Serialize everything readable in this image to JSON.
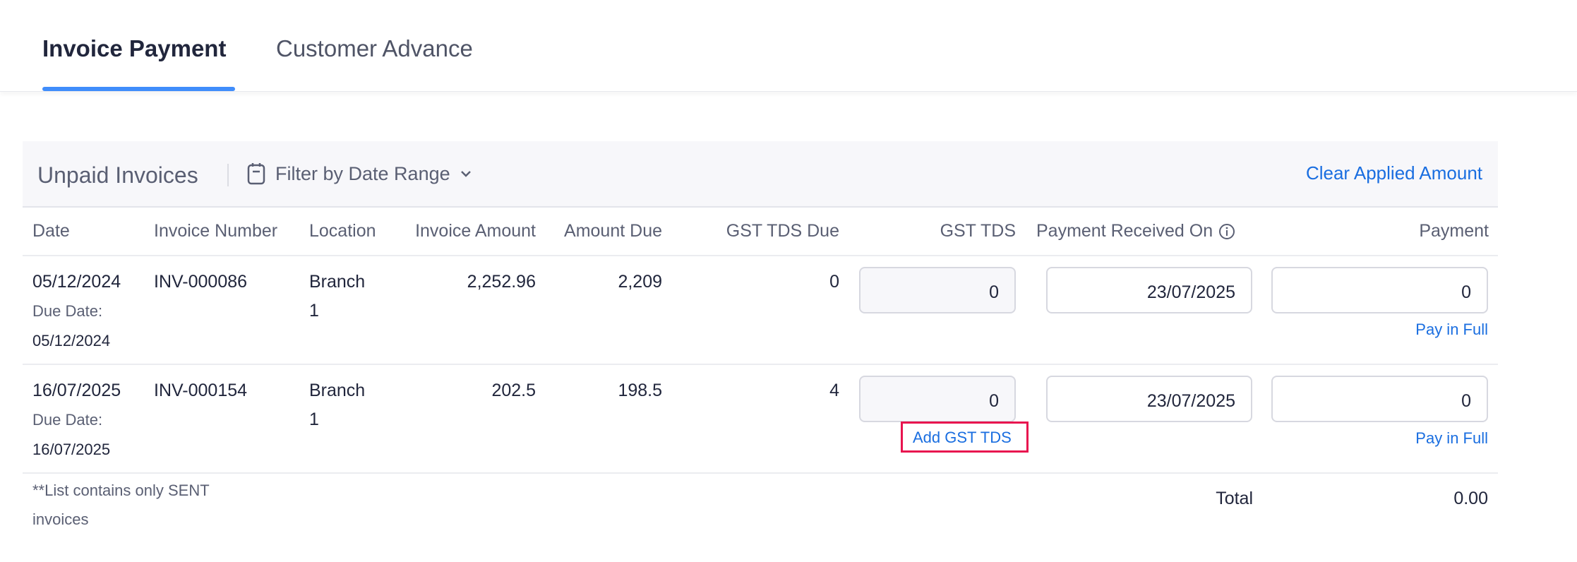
{
  "tabs": [
    {
      "label": "Invoice Payment",
      "active": true
    },
    {
      "label": "Customer Advance",
      "active": false
    }
  ],
  "panel": {
    "title": "Unpaid Invoices",
    "filter_label": "Filter by Date Range",
    "clear_label": "Clear Applied Amount"
  },
  "columns": [
    "Date",
    "Invoice Number",
    "Location",
    "Invoice Amount",
    "Amount Due",
    "GST TDS Due",
    "GST TDS",
    "Payment Received On",
    "Payment"
  ],
  "rows": [
    {
      "date": "05/12/2024",
      "due_label": "Due Date:",
      "due_date": "05/12/2024",
      "invoice": "INV-000086",
      "location_line1": "Branch",
      "location_line2": "1",
      "invoice_amount": "2,252.96",
      "amount_due": "2,209",
      "gst_tds_due": "0",
      "gst_tds": "0",
      "received_on": "23/07/2025",
      "payment": "0",
      "pay_full": "Pay in Full"
    },
    {
      "date": "16/07/2025",
      "due_label": "Due Date:",
      "due_date": "16/07/2025",
      "invoice": "INV-000154",
      "location_line1": "Branch",
      "location_line2": "1",
      "invoice_amount": "202.5",
      "amount_due": "198.5",
      "gst_tds_due": "4",
      "gst_tds": "0",
      "received_on": "23/07/2025",
      "payment": "0",
      "add_gst_tds": "Add GST TDS",
      "pay_full": "Pay in Full"
    }
  ],
  "footer": {
    "note_line1": "**List contains only SENT",
    "note_line2": "invoices",
    "total_label": "Total",
    "total_value": "0.00"
  },
  "colors": {
    "accent": "#408dfb",
    "link": "#1a6ee0",
    "highlight": "#e8144f"
  }
}
